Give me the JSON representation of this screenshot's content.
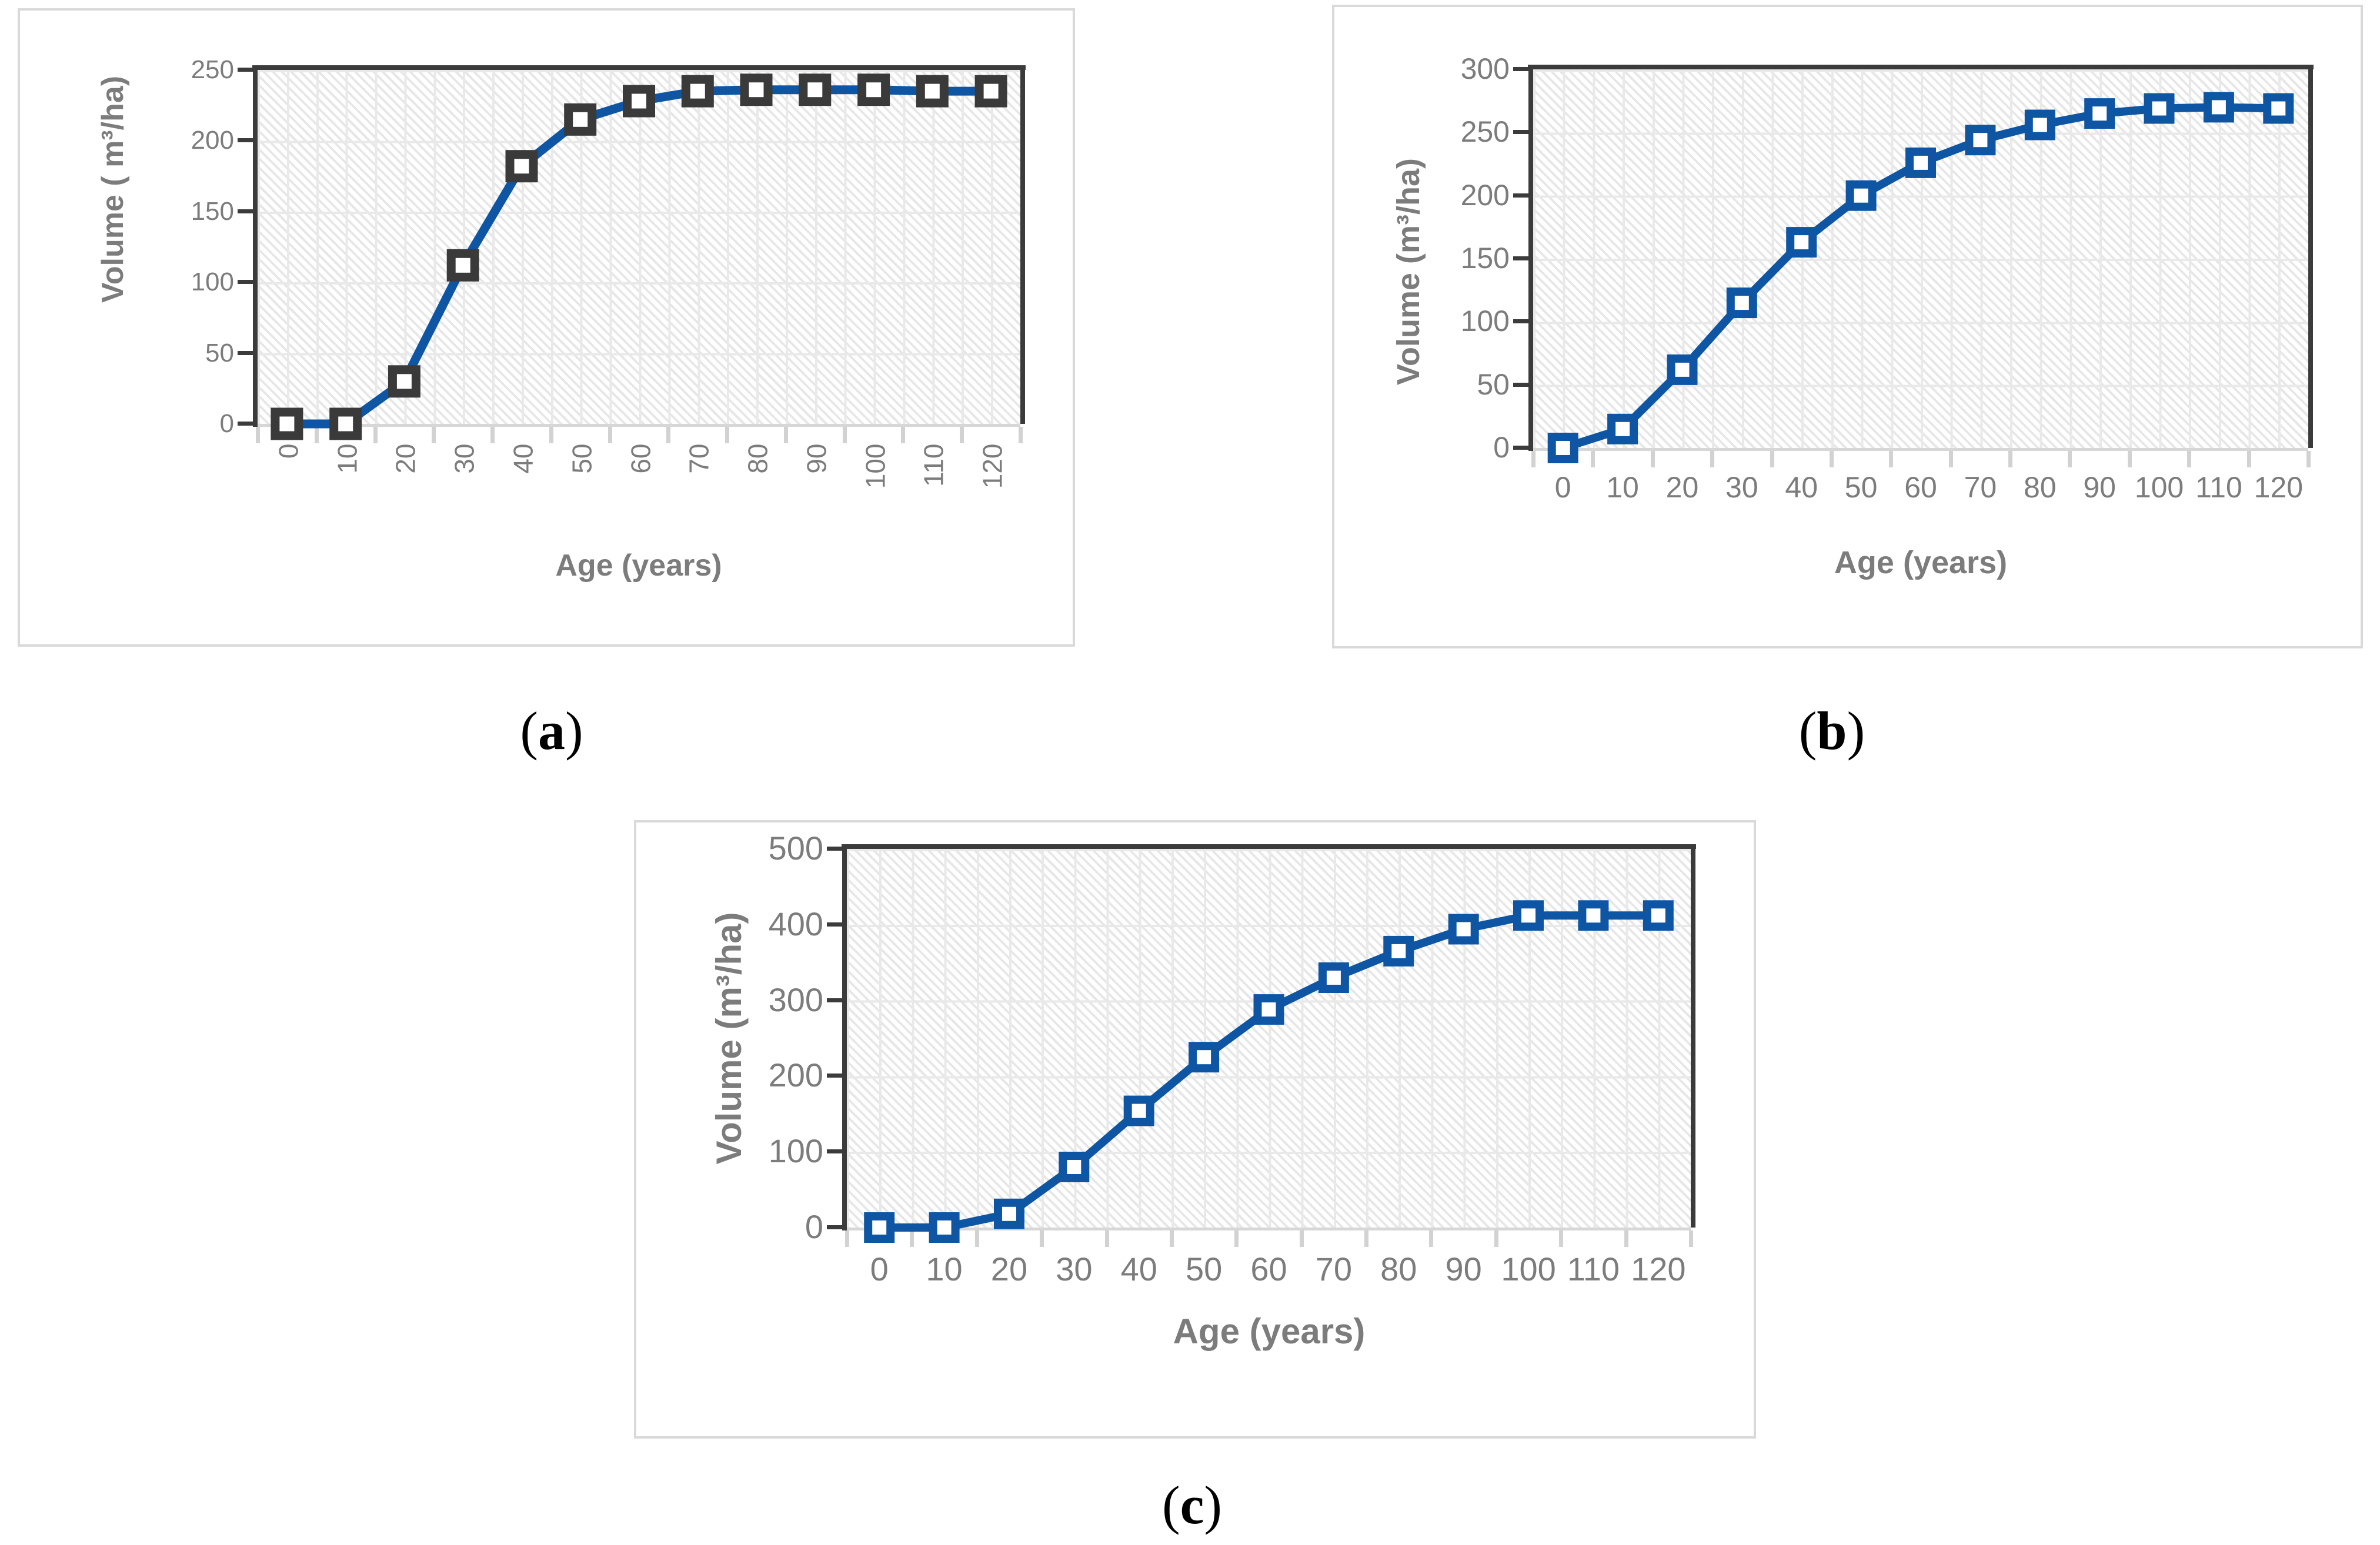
{
  "figure": {
    "panels": [
      {
        "caption_open": "(",
        "caption_letter": "a",
        "caption_close": ")",
        "y_title": "Volume ( m³/ha)",
        "x_title": "Age (years)"
      },
      {
        "caption_open": "(",
        "caption_letter": "b",
        "caption_close": ")",
        "y_title": "Volume (m³/ha)",
        "x_title": "Age (years)"
      },
      {
        "caption_open": "(",
        "caption_letter": "c",
        "caption_close": ")",
        "y_title": "Volume (m³/ha)",
        "x_title": "Age (years)"
      }
    ]
  },
  "colors": {
    "line_blue": "#0E56A4",
    "marker_dark": "#3A3A3A",
    "text_gray": "#7C7C7C",
    "axis_dark": "#3B3B3B",
    "gridline": "#E9E9E9",
    "panel_border": "#D9D9D9"
  },
  "chart_data": [
    {
      "type": "line",
      "panel": "a",
      "title": "",
      "xlabel": "Age (years)",
      "ylabel": "Volume ( m³/ha)",
      "x": [
        0,
        10,
        20,
        30,
        40,
        50,
        60,
        70,
        80,
        90,
        100,
        110,
        120
      ],
      "x_tick_labels": [
        "0",
        "10",
        "20",
        "30",
        "40",
        "50",
        "60",
        "70",
        "80",
        "90",
        "100",
        "110",
        "120"
      ],
      "x_tick_labels_rotated": true,
      "y_ticks": [
        0,
        50,
        100,
        150,
        200,
        250
      ],
      "ylim": [
        0,
        250
      ],
      "ytick_step": 50,
      "grid": true,
      "legend": false,
      "marker": "square",
      "marker_color": "#3A3A3A",
      "line_color": "#0E56A4",
      "series": [
        {
          "name": "volume",
          "values": [
            0,
            0,
            30,
            112,
            182,
            215,
            228,
            235,
            236,
            236,
            236,
            235,
            235
          ]
        }
      ]
    },
    {
      "type": "line",
      "panel": "b",
      "title": "",
      "xlabel": "Age (years)",
      "ylabel": "Volume (m³/ha)",
      "x": [
        0,
        10,
        20,
        30,
        40,
        50,
        60,
        70,
        80,
        90,
        100,
        110,
        120
      ],
      "x_tick_labels": [
        "0",
        "10",
        "20",
        "30",
        "40",
        "50",
        "60",
        "70",
        "80",
        "90",
        "100",
        "110",
        "120"
      ],
      "x_tick_labels_rotated": false,
      "y_ticks": [
        0,
        50,
        100,
        150,
        200,
        250,
        300
      ],
      "ylim": [
        0,
        300
      ],
      "ytick_step": 50,
      "grid": true,
      "legend": false,
      "marker": "square",
      "marker_color": "#0E56A4",
      "line_color": "#0E56A4",
      "series": [
        {
          "name": "volume",
          "values": [
            0,
            15,
            62,
            115,
            163,
            200,
            226,
            244,
            256,
            265,
            269,
            270,
            269
          ]
        }
      ]
    },
    {
      "type": "line",
      "panel": "c",
      "title": "",
      "xlabel": "Age (years)",
      "ylabel": "Volume (m³/ha)",
      "x": [
        0,
        10,
        20,
        30,
        40,
        50,
        60,
        70,
        80,
        90,
        100,
        110,
        120
      ],
      "x_tick_labels": [
        "0",
        "10",
        "20",
        "30",
        "40",
        "50",
        "60",
        "70",
        "80",
        "90",
        "100",
        "110",
        "120"
      ],
      "x_tick_labels_rotated": false,
      "y_ticks": [
        0,
        100,
        200,
        300,
        400,
        500
      ],
      "ylim": [
        0,
        500
      ],
      "ytick_step": 100,
      "grid": true,
      "legend": false,
      "marker": "square",
      "marker_color": "#0E56A4",
      "line_color": "#0E56A4",
      "series": [
        {
          "name": "volume",
          "values": [
            0,
            0,
            18,
            80,
            154,
            225,
            288,
            330,
            365,
            394,
            412,
            412,
            412
          ]
        }
      ]
    }
  ]
}
